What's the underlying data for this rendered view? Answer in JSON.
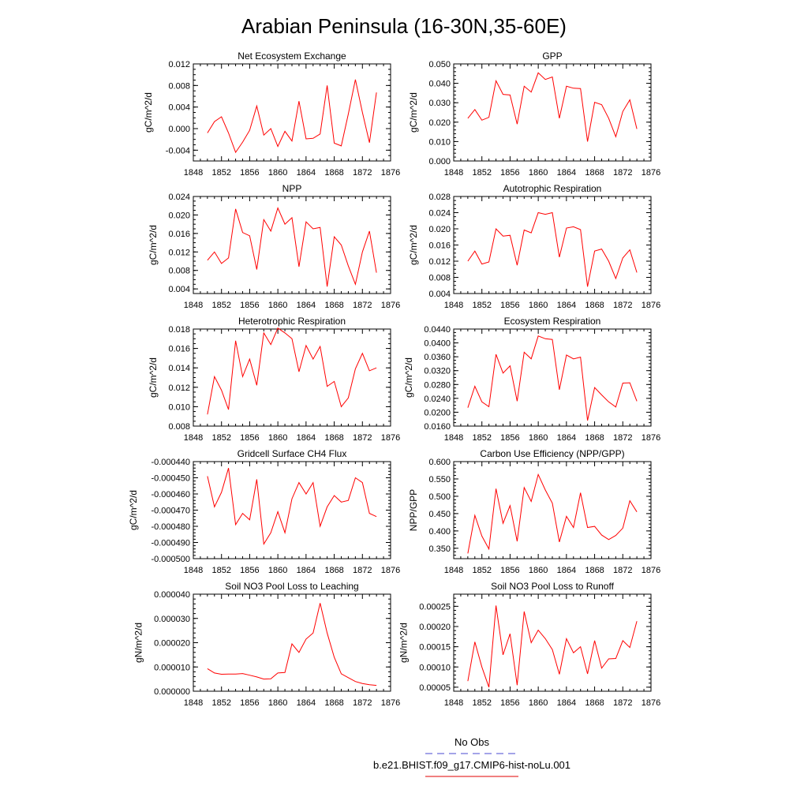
{
  "figure": {
    "title": "Arabian Peninsula (16-30N,35-60E)",
    "legend": [
      {
        "label": "No Obs",
        "color": "#4a4ad0",
        "dash": true
      },
      {
        "label": "b.e21.BHIST.f09_g17.CMIP6-hist-noLu.001",
        "color": "#e00000",
        "dash": false
      }
    ],
    "series_color": "#ff0000"
  },
  "chart_data": [
    {
      "type": "line",
      "title": "Net Ecosystem Exchange",
      "ylabel": "gC/m^2/d",
      "xlim": [
        1848,
        1876
      ],
      "xticks": [
        1848,
        1852,
        1856,
        1860,
        1864,
        1868,
        1872,
        1876
      ],
      "xminor": 1,
      "ylim": [
        -0.006,
        0.012
      ],
      "yticks": [
        "-0.004",
        "0.000",
        "0.004",
        "0.008",
        "0.012"
      ],
      "yminor": 0.001,
      "x": [
        1850,
        1851,
        1852,
        1853,
        1854,
        1855,
        1856,
        1857,
        1858,
        1859,
        1860,
        1861,
        1862,
        1863,
        1864,
        1865,
        1866,
        1867,
        1868,
        1869,
        1870,
        1871,
        1872,
        1873,
        1874
      ],
      "values": [
        -0.0008,
        0.0013,
        0.0022,
        -0.0008,
        -0.0044,
        -0.0025,
        -0.0003,
        0.0042,
        -0.0012,
        0.0,
        -0.0033,
        -0.0005,
        -0.0023,
        0.0051,
        -0.0019,
        -0.0018,
        -0.001,
        0.008,
        -0.0027,
        -0.0032,
        0.0027,
        0.0091,
        0.003,
        -0.0026,
        0.0067
      ]
    },
    {
      "type": "line",
      "title": "GPP",
      "ylabel": "gC/m^2/d",
      "xlim": [
        1848,
        1876
      ],
      "xticks": [
        1848,
        1852,
        1856,
        1860,
        1864,
        1868,
        1872,
        1876
      ],
      "xminor": 1,
      "ylim": [
        0,
        0.05
      ],
      "yticks": [
        "0.000",
        "0.010",
        "0.020",
        "0.030",
        "0.040",
        "0.050"
      ],
      "yminor": 0.002,
      "x": [
        1850,
        1851,
        1852,
        1853,
        1854,
        1855,
        1856,
        1857,
        1858,
        1859,
        1860,
        1861,
        1862,
        1863,
        1864,
        1865,
        1866,
        1867,
        1868,
        1869,
        1870,
        1871,
        1872,
        1873,
        1874
      ],
      "values": [
        0.022,
        0.0265,
        0.021,
        0.0225,
        0.0413,
        0.0343,
        0.034,
        0.019,
        0.0385,
        0.0355,
        0.0454,
        0.042,
        0.0433,
        0.022,
        0.0385,
        0.0375,
        0.0373,
        0.01,
        0.0302,
        0.029,
        0.022,
        0.0125,
        0.0255,
        0.0315,
        0.0165
      ]
    },
    {
      "type": "line",
      "title": "NPP",
      "ylabel": "gC/m^2/d",
      "xlim": [
        1848,
        1876
      ],
      "xticks": [
        1848,
        1852,
        1856,
        1860,
        1864,
        1868,
        1872,
        1876
      ],
      "xminor": 1,
      "ylim": [
        0.003,
        0.024
      ],
      "yticks": [
        "0.004",
        "0.008",
        "0.012",
        "0.016",
        "0.020",
        "0.024"
      ],
      "yminor": 0.001,
      "x": [
        1850,
        1851,
        1852,
        1853,
        1854,
        1855,
        1856,
        1857,
        1858,
        1859,
        1860,
        1861,
        1862,
        1863,
        1864,
        1865,
        1866,
        1867,
        1868,
        1869,
        1870,
        1871,
        1872,
        1873,
        1874
      ],
      "values": [
        0.0102,
        0.012,
        0.0095,
        0.0107,
        0.0213,
        0.0162,
        0.0155,
        0.0082,
        0.019,
        0.0165,
        0.0215,
        0.018,
        0.0194,
        0.0088,
        0.0185,
        0.017,
        0.0173,
        0.0045,
        0.0153,
        0.0135,
        0.009,
        0.005,
        0.012,
        0.0165,
        0.0075
      ]
    },
    {
      "type": "line",
      "title": "Autotrophic Respiration",
      "ylabel": "gC/m^2/d",
      "xlim": [
        1848,
        1876
      ],
      "xticks": [
        1848,
        1852,
        1856,
        1860,
        1864,
        1868,
        1872,
        1876
      ],
      "xminor": 1,
      "ylim": [
        0.004,
        0.028
      ],
      "yticks": [
        "0.004",
        "0.008",
        "0.012",
        "0.016",
        "0.020",
        "0.024",
        "0.028"
      ],
      "yminor": 0.001,
      "x": [
        1850,
        1851,
        1852,
        1853,
        1854,
        1855,
        1856,
        1857,
        1858,
        1859,
        1860,
        1861,
        1862,
        1863,
        1864,
        1865,
        1866,
        1867,
        1868,
        1869,
        1870,
        1871,
        1872,
        1873,
        1874
      ],
      "values": [
        0.012,
        0.0145,
        0.0113,
        0.0118,
        0.02,
        0.0182,
        0.0184,
        0.011,
        0.0197,
        0.019,
        0.024,
        0.0236,
        0.024,
        0.013,
        0.0202,
        0.0205,
        0.0198,
        0.0057,
        0.0145,
        0.015,
        0.012,
        0.0077,
        0.0128,
        0.0148,
        0.0092
      ]
    },
    {
      "type": "line",
      "title": "Heterotrophic Respiration",
      "ylabel": "gC/m^2/d",
      "xlim": [
        1848,
        1876
      ],
      "xticks": [
        1848,
        1852,
        1856,
        1860,
        1864,
        1868,
        1872,
        1876
      ],
      "xminor": 1,
      "ylim": [
        0.008,
        0.018
      ],
      "yticks": [
        "0.008",
        "0.010",
        "0.012",
        "0.014",
        "0.016",
        "0.018"
      ],
      "yminor": 0.0005,
      "x": [
        1850,
        1851,
        1852,
        1853,
        1854,
        1855,
        1856,
        1857,
        1858,
        1859,
        1860,
        1861,
        1862,
        1863,
        1864,
        1865,
        1866,
        1867,
        1868,
        1869,
        1870,
        1871,
        1872,
        1873,
        1874
      ],
      "values": [
        0.0092,
        0.0131,
        0.0117,
        0.0097,
        0.0168,
        0.0131,
        0.0149,
        0.0122,
        0.0176,
        0.0164,
        0.0181,
        0.0176,
        0.017,
        0.0136,
        0.0163,
        0.0149,
        0.0162,
        0.0121,
        0.0126,
        0.01,
        0.0109,
        0.0139,
        0.0155,
        0.0137,
        0.014
      ]
    },
    {
      "type": "line",
      "title": "Ecosystem Respiration",
      "ylabel": "gC/m^2/d",
      "xlim": [
        1848,
        1876
      ],
      "xticks": [
        1848,
        1852,
        1856,
        1860,
        1864,
        1868,
        1872,
        1876
      ],
      "xminor": 1,
      "ylim": [
        0.016,
        0.044
      ],
      "yticks": [
        "0.0160",
        "0.0200",
        "0.0240",
        "0.0280",
        "0.0320",
        "0.0360",
        "0.0400",
        "0.0440"
      ],
      "yminor": 0.001,
      "x": [
        1850,
        1851,
        1852,
        1853,
        1854,
        1855,
        1856,
        1857,
        1858,
        1859,
        1860,
        1861,
        1862,
        1863,
        1864,
        1865,
        1866,
        1867,
        1868,
        1869,
        1870,
        1871,
        1872,
        1873,
        1874
      ],
      "values": [
        0.0213,
        0.0275,
        0.023,
        0.0216,
        0.0367,
        0.0313,
        0.0334,
        0.0232,
        0.0373,
        0.0354,
        0.042,
        0.0412,
        0.041,
        0.0265,
        0.0365,
        0.0354,
        0.0359,
        0.0176,
        0.0271,
        0.025,
        0.023,
        0.0215,
        0.0284,
        0.0285,
        0.0232
      ]
    },
    {
      "type": "line",
      "title": "Gridcell Surface CH4 Flux",
      "ylabel": "gC/m^2/d",
      "xlim": [
        1848,
        1876
      ],
      "xticks": [
        1848,
        1852,
        1856,
        1860,
        1864,
        1868,
        1872,
        1876
      ],
      "xminor": 1,
      "ylim": [
        -0.0005,
        -0.00044
      ],
      "yticks": [
        "-0.000500",
        "-0.000490",
        "-0.000480",
        "-0.000470",
        "-0.000460",
        "-0.000450",
        "-0.000440"
      ],
      "yminor": 2e-06,
      "x": [
        1850,
        1851,
        1852,
        1853,
        1854,
        1855,
        1856,
        1857,
        1858,
        1859,
        1860,
        1861,
        1862,
        1863,
        1864,
        1865,
        1866,
        1867,
        1868,
        1869,
        1870,
        1871,
        1872,
        1873,
        1874
      ],
      "values": [
        -0.000449,
        -0.000468,
        -0.000459,
        -0.000444,
        -0.000479,
        -0.000472,
        -0.000476,
        -0.000451,
        -0.000491,
        -0.000484,
        -0.000471,
        -0.000484,
        -0.000463,
        -0.000453,
        -0.00046,
        -0.000453,
        -0.00048,
        -0.000468,
        -0.000461,
        -0.000465,
        -0.000464,
        -0.00045,
        -0.000453,
        -0.000472,
        -0.000474
      ]
    },
    {
      "type": "line",
      "title": "Carbon Use Efficiency (NPP/GPP)",
      "ylabel": "NPP/GPP",
      "xlim": [
        1848,
        1876
      ],
      "xticks": [
        1848,
        1852,
        1856,
        1860,
        1864,
        1868,
        1872,
        1876
      ],
      "xminor": 1,
      "ylim": [
        0.32,
        0.6
      ],
      "yticks": [
        "0.350",
        "0.400",
        "0.450",
        "0.500",
        "0.550",
        "0.600"
      ],
      "yminor": 0.01,
      "x": [
        1850,
        1851,
        1852,
        1853,
        1854,
        1855,
        1856,
        1857,
        1858,
        1859,
        1860,
        1861,
        1862,
        1863,
        1864,
        1865,
        1866,
        1867,
        1868,
        1869,
        1870,
        1871,
        1872,
        1873,
        1874
      ],
      "values": [
        0.335,
        0.445,
        0.385,
        0.348,
        0.522,
        0.422,
        0.473,
        0.37,
        0.525,
        0.485,
        0.563,
        0.518,
        0.48,
        0.368,
        0.442,
        0.41,
        0.51,
        0.41,
        0.413,
        0.388,
        0.375,
        0.387,
        0.408,
        0.487,
        0.455
      ]
    },
    {
      "type": "line",
      "title": "Soil NO3 Pool Loss to Leaching",
      "ylabel": "gN/m^2/d",
      "xlim": [
        1848,
        1876
      ],
      "xticks": [
        1848,
        1852,
        1856,
        1860,
        1864,
        1868,
        1872,
        1876
      ],
      "xminor": 1,
      "ylim": [
        0,
        4e-05
      ],
      "yticks": [
        "0.000000",
        "0.000010",
        "0.000020",
        "0.000030",
        "0.000040"
      ],
      "yminor": 2e-06,
      "x": [
        1850,
        1851,
        1852,
        1853,
        1854,
        1855,
        1856,
        1857,
        1858,
        1859,
        1860,
        1861,
        1862,
        1863,
        1864,
        1865,
        1866,
        1867,
        1868,
        1869,
        1870,
        1871,
        1872,
        1873,
        1874
      ],
      "values": [
        9.3e-06,
        7.5e-06,
        7e-06,
        7.1e-06,
        7.1e-06,
        7.3e-06,
        6.6e-06,
        5.9e-06,
        5e-06,
        5.1e-06,
        7.5e-06,
        7.7e-06,
        1.95e-05,
        1.6e-05,
        2.15e-05,
        2.4e-05,
        3.63e-05,
        2.4e-05,
        1.4e-05,
        7.2e-06,
        5.6e-06,
        4e-06,
        3.2e-06,
        2.7e-06,
        2.4e-06
      ]
    },
    {
      "type": "line",
      "title": "Soil NO3 Pool Loss to Runoff",
      "ylabel": "gN/m^2/d",
      "xlim": [
        1848,
        1876
      ],
      "xticks": [
        1848,
        1852,
        1856,
        1860,
        1864,
        1868,
        1872,
        1876
      ],
      "xminor": 1,
      "ylim": [
        4e-05,
        0.00028
      ],
      "yticks": [
        "0.00005",
        "0.00010",
        "0.00015",
        "0.00020",
        "0.00025"
      ],
      "yminor": 1e-05,
      "x": [
        1850,
        1851,
        1852,
        1853,
        1854,
        1855,
        1856,
        1857,
        1858,
        1859,
        1860,
        1861,
        1862,
        1863,
        1864,
        1865,
        1866,
        1867,
        1868,
        1869,
        1870,
        1871,
        1872,
        1873,
        1874
      ],
      "values": [
        6.5e-05,
        0.000162,
        0.0001,
        5e-05,
        0.000252,
        0.00013,
        0.000182,
        5.5e-05,
        0.000237,
        0.00016,
        0.000191,
        0.00017,
        0.000143,
        8.2e-05,
        0.00017,
        0.000135,
        0.00015,
        8.3e-05,
        0.000165,
        9.7e-05,
        0.00012,
        0.000121,
        0.000165,
        0.000148,
        0.000213
      ]
    }
  ]
}
